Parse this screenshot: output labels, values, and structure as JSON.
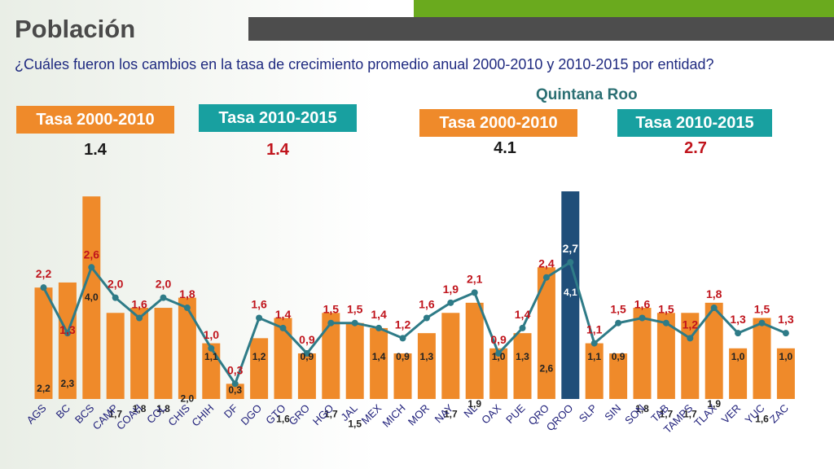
{
  "header": {
    "title": "Población",
    "question": "¿Cuáles fueron los cambios en la tasa de crecimiento promedio anual 2000-2010 y 2010-2015 por entidad?",
    "subtitle": "Quintana Roo"
  },
  "summary": {
    "national_2000_label": "Tasa 2000-2010",
    "national_2000_value": "1.4",
    "national_2010_label": "Tasa 2010-2015",
    "national_2010_value": "1.4",
    "qroo_2000_label": "Tasa 2000-2010",
    "qroo_2000_value": "4.1",
    "qroo_2010_label": "Tasa 2010-2015",
    "qroo_2010_value": "2.7"
  },
  "colors": {
    "bar": "#ef8a2a",
    "bar_highlight": "#1f4e79",
    "line": "#2e7b87",
    "label_bar": "#222222",
    "label_line": "#c0141c",
    "box_orange": "#ef8a2a",
    "box_teal": "#18a0a0"
  },
  "chart_data": {
    "type": "bar",
    "categories": [
      "AGS",
      "BC",
      "BCS",
      "CAMP",
      "COAH",
      "COL",
      "CHIS",
      "CHIH",
      "DF",
      "DGO",
      "GTO",
      "GRO",
      "HGO",
      "JAL",
      "MEX",
      "MICH",
      "MOR",
      "NAY",
      "NL",
      "OAX",
      "PUE",
      "QRO",
      "QROO",
      "SLP",
      "SIN",
      "SON",
      "TAB",
      "TAMPS",
      "TLAX",
      "VER",
      "YUC",
      "ZAC"
    ],
    "series": [
      {
        "key": "2000-2010",
        "values": [
          2.2,
          2.3,
          4.0,
          1.7,
          1.8,
          1.8,
          2.0,
          1.1,
          0.3,
          1.2,
          1.6,
          0.9,
          1.7,
          1.5,
          1.4,
          0.9,
          1.3,
          1.7,
          1.9,
          1.0,
          1.3,
          2.6,
          4.1,
          1.1,
          0.9,
          1.8,
          1.7,
          1.7,
          1.9,
          1.0,
          1.6,
          1.0
        ],
        "labels": [
          "2,2",
          "2,3",
          "4,0",
          "1,7",
          "1,8",
          "1,8",
          "2,0",
          "1,1",
          "0,3",
          "1,2",
          "1,6",
          "0,9",
          "1,7",
          "1,5",
          "1,4",
          "0,9",
          "1,3",
          "1,7",
          "1,9",
          "1,0",
          "1,3",
          "2,6",
          "4,1",
          "1,1",
          "0,9",
          "1,8",
          "1,7",
          "1,7",
          "1,9",
          "1,0",
          "1,6",
          "1,0"
        ]
      },
      {
        "key": "2010-2015",
        "values": [
          2.2,
          1.3,
          2.6,
          2.0,
          1.6,
          2.0,
          1.8,
          1.0,
          0.3,
          1.6,
          1.4,
          0.9,
          1.5,
          1.5,
          1.4,
          1.2,
          1.6,
          1.9,
          2.1,
          0.9,
          1.4,
          2.4,
          2.7,
          1.1,
          1.5,
          1.6,
          1.5,
          1.2,
          1.8,
          1.3,
          1.5,
          1.3
        ],
        "labels": [
          "2,2",
          "1,3",
          "2,6",
          "2,0",
          "1,6",
          "2,0",
          "1,8",
          "1,0",
          "0,3",
          "1,6",
          "1,4",
          "0,9",
          "1,5",
          "1,5",
          "1,4",
          "1,2",
          "1,6",
          "1,9",
          "2,1",
          "0,9",
          "1,4",
          "2,4",
          "2,7",
          "1,1",
          "1,5",
          "1,6",
          "1,5",
          "1,2",
          "1,8",
          "1,3",
          "1,5",
          "1,3"
        ]
      }
    ],
    "highlight_category": "QROO",
    "ylim": [
      0,
      4.1
    ],
    "grid": false,
    "title": "",
    "xlabel": "",
    "ylabel": ""
  }
}
